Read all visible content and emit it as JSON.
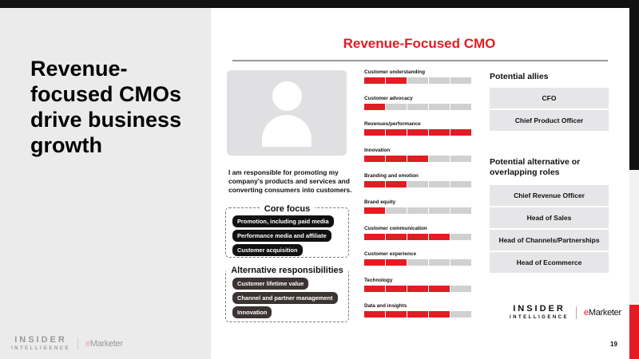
{
  "headline": "Revenue-focused CMOs drive business growth",
  "logo": {
    "insider": "INSIDER",
    "intelligence": "INTELLIGENCE",
    "emarketer_e": "e",
    "emarketer_rest": "Marketer"
  },
  "colors": {
    "accent": "#e31b23",
    "dark": "#111111",
    "panel": "#ebebeb"
  },
  "profile": {
    "title": "Revenue-Focused CMO",
    "avatar_icon": "person-silhouette-icon",
    "description": "I am responsible for promoting my company's products and services and converting consumers into customers.",
    "core_focus": {
      "label": "Core focus",
      "items": [
        "Promotion, including paid media",
        "Performance media and affiliate",
        "Customer acquisition"
      ]
    },
    "alternative": {
      "label": "Alternative responsibilities",
      "items": [
        "Customer lifetime value",
        "Channel and partner management",
        "Innovation"
      ]
    }
  },
  "skills": {
    "scale_max": 5,
    "items": [
      {
        "label": "Customer understanding",
        "level": 2
      },
      {
        "label": "Customer advocacy",
        "level": 1
      },
      {
        "label": "Revenues/performance",
        "level": 5
      },
      {
        "label": "Innovation",
        "level": 3
      },
      {
        "label": "Branding and emotion",
        "level": 2
      },
      {
        "label": "Brand equity",
        "level": 1
      },
      {
        "label": "Customer communication",
        "level": 4
      },
      {
        "label": "Customer experience",
        "level": 2
      },
      {
        "label": "Technology",
        "level": 4
      },
      {
        "label": "Data and insights",
        "level": 4
      }
    ]
  },
  "allies": {
    "label": "Potential allies",
    "items": [
      "CFO",
      "Chief Product Officer"
    ]
  },
  "roles": {
    "label": "Potential alternative or overlapping roles",
    "items": [
      "Chief Revenue Officer",
      "Head of Sales",
      "Head of Channels/Partnerships",
      "Head of Ecommerce"
    ]
  },
  "page_number": "19"
}
